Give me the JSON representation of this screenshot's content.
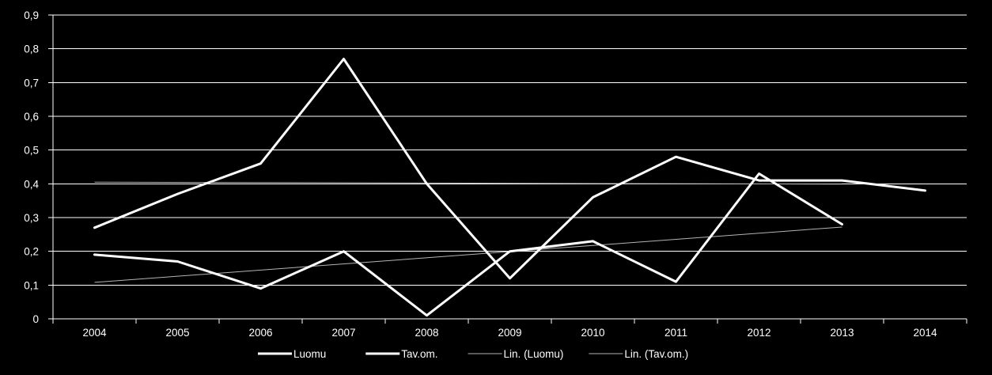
{
  "chart_data": {
    "type": "line",
    "categories": [
      "2004",
      "2005",
      "2006",
      "2007",
      "2008",
      "2009",
      "2010",
      "2011",
      "2012",
      "2013",
      "2014"
    ],
    "ylim": [
      0,
      0.9
    ],
    "yticks": [
      0,
      0.1,
      0.2,
      0.3,
      0.4,
      0.5,
      0.6,
      0.7,
      0.8,
      0.9
    ],
    "ytick_labels": [
      "0",
      "0,1",
      "0,2",
      "0,3",
      "0,4",
      "0,5",
      "0,6",
      "0,7",
      "0,8",
      "0,9"
    ],
    "grid": true,
    "legend_position": "bottom",
    "series": [
      {
        "name": "Luomu",
        "values": [
          0.27,
          0.37,
          0.46,
          0.77,
          0.4,
          0.12,
          0.36,
          0.48,
          0.41,
          0.41,
          0.38
        ]
      },
      {
        "name": "Tav.om.",
        "values": [
          0.19,
          0.17,
          0.09,
          0.2,
          0.01,
          0.2,
          0.23,
          0.11,
          0.43,
          0.28,
          null
        ]
      }
    ],
    "trendlines": [
      {
        "name": "Lin. (Luomu)",
        "of_series": "Luomu",
        "from": [
          2004,
          0.405
        ],
        "to": [
          2013,
          0.399
        ]
      },
      {
        "name": "Lin. (Tav.om.)",
        "of_series": "Tav.om.",
        "from": [
          2004,
          0.108
        ],
        "to": [
          2013,
          0.272
        ]
      }
    ],
    "colors": {
      "background": "#000000",
      "series": "#ffffff",
      "trend": "#b4b4b4",
      "grid": "#ffffff"
    }
  }
}
